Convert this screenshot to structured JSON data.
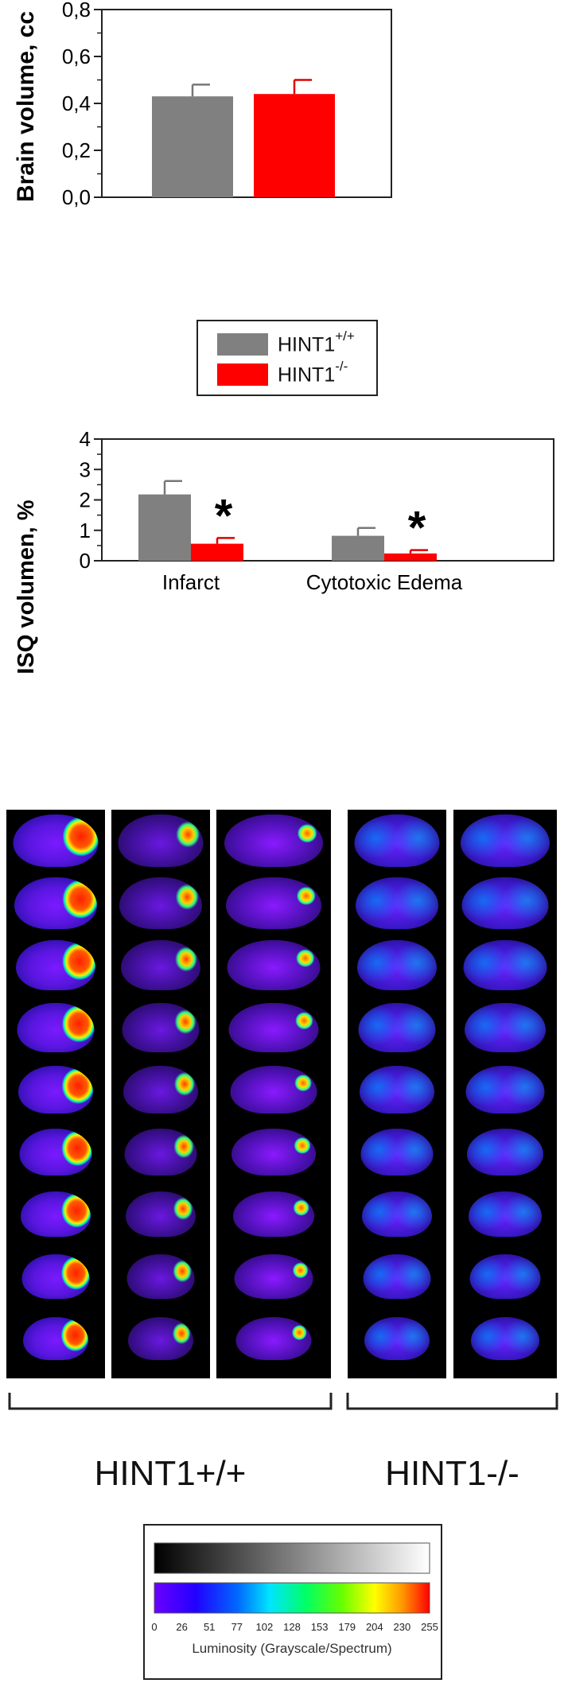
{
  "chart_data": [
    {
      "type": "bar",
      "ylabel": "Brain volume, cc",
      "ylim": [
        0,
        0.8
      ],
      "yticks": [
        "0,0",
        "0,2",
        "0,4",
        "0,6",
        "0,8"
      ],
      "categories": [
        ""
      ],
      "series": [
        {
          "name": "HINT1+/+",
          "values": [
            0.43
          ],
          "errors": [
            0.05
          ],
          "color": "#808080"
        },
        {
          "name": "HINT1-/-",
          "values": [
            0.44
          ],
          "errors": [
            0.06
          ],
          "color": "#ff0000"
        }
      ],
      "grid": false
    },
    {
      "type": "bar",
      "ylabel": "ISQ volumen, %",
      "ylim": [
        0,
        4
      ],
      "yticks": [
        "0",
        "1",
        "2",
        "3",
        "4"
      ],
      "categories": [
        "Infarct",
        "Cytotoxic Edema"
      ],
      "series": [
        {
          "name": "HINT1+/+",
          "values": [
            2.18,
            0.82
          ],
          "errors": [
            0.44,
            0.26
          ],
          "color": "#808080"
        },
        {
          "name": "HINT1-/-",
          "values": [
            0.56,
            0.24
          ],
          "errors": [
            0.19,
            0.11
          ],
          "color": "#ff0000"
        }
      ],
      "annotations": [
        "*",
        "*"
      ],
      "grid": false
    }
  ],
  "legend": {
    "items": [
      {
        "base": "HINT1",
        "sup": "+/+",
        "color": "#808080"
      },
      {
        "base": "HINT1",
        "sup": "-/-",
        "color": "#ff0000"
      }
    ]
  },
  "groups": {
    "left_label": "HINT1+/+",
    "right_label": "HINT1-/-"
  },
  "colorbar": {
    "ticks": [
      "0",
      "26",
      "51",
      "77",
      "102",
      "128",
      "153",
      "179",
      "204",
      "230",
      "255"
    ],
    "caption": "Luminosity (Grayscale/Spectrum)"
  }
}
